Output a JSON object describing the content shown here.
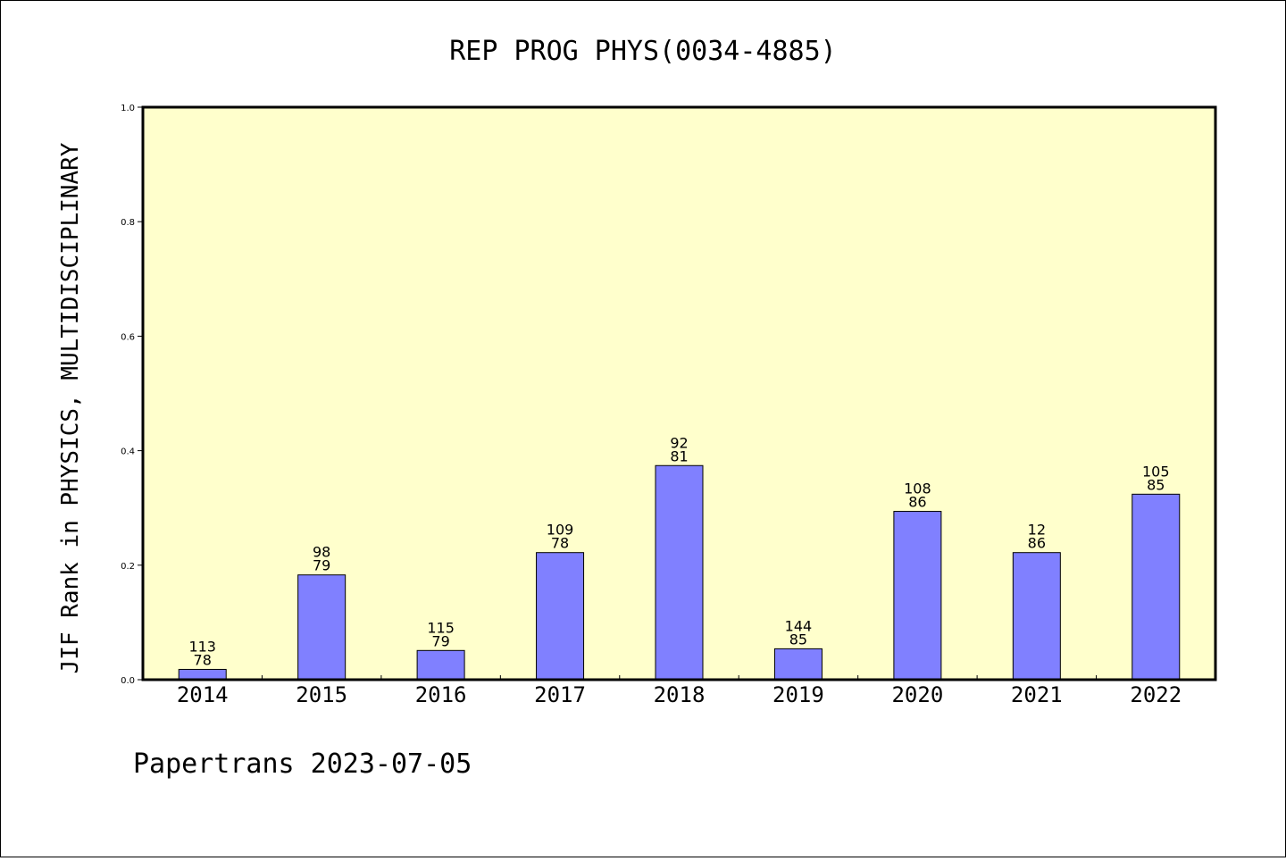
{
  "chart_data": {
    "type": "bar",
    "title": "REP PROG PHYS(0034-4885)",
    "xlabel": "",
    "ylabel": "JIF Rank in PHYSICS, MULTIDISCIPLINARY",
    "categories": [
      "2014",
      "2015",
      "2016",
      "2017",
      "2018",
      "2019",
      "2020",
      "2021",
      "2022"
    ],
    "values": [
      0.018,
      0.183,
      0.051,
      0.222,
      0.374,
      0.054,
      0.294,
      0.222,
      0.324
    ],
    "label_top": [
      "113",
      "98",
      "115",
      "109",
      "92",
      "144",
      "108",
      "12",
      "105"
    ],
    "label_bottom": [
      "78",
      "79",
      "79",
      "78",
      "81",
      "85",
      "86",
      "86",
      "85"
    ],
    "ylim": [
      0,
      1.0
    ],
    "yticks": [
      "0.0",
      "0.2",
      "0.4",
      "0.6",
      "0.8",
      "1.0"
    ],
    "grid": false,
    "colors": {
      "bar": "#8080ff",
      "plot_bg": "#ffffcc"
    }
  },
  "footer": "Papertrans 2023-07-05"
}
